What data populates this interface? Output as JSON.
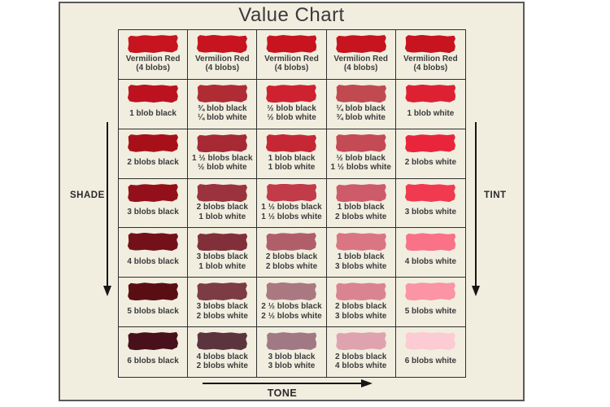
{
  "title": "Value Chart",
  "axes": {
    "shade_label": "SHADE",
    "tint_label": "TINT",
    "tone_label": "TONE"
  },
  "colors": {
    "page_bg": "#ffffff",
    "panel_bg": "#F1EEE0",
    "panel_border": "#5a5a5a",
    "grid_line": "#2e2e2e",
    "text": "#3b3b3b",
    "arrow": "#161616",
    "base_red": "#C7141F"
  },
  "chart_data": {
    "type": "table",
    "title": "Value Chart",
    "description_axes": {
      "left_arrow": "SHADE (down)",
      "right_arrow": "TINT (down)",
      "bottom_arrow": "TONE (right)"
    },
    "columns": 5,
    "rows": [
      {
        "cells": [
          {
            "label": [
              "Vermilion Red",
              "(4 blobs)"
            ],
            "color": "#C7141F"
          },
          {
            "label": [
              "Vermilion Red",
              "(4 blobs)"
            ],
            "color": "#C7141F"
          },
          {
            "label": [
              "Vermilion Red",
              "(4 blobs)"
            ],
            "color": "#C7141F"
          },
          {
            "label": [
              "Vermilion Red",
              "(4 blobs)"
            ],
            "color": "#C7141F"
          },
          {
            "label": [
              "Vermilion Red",
              "(4 blobs)"
            ],
            "color": "#C7141F"
          }
        ]
      },
      {
        "cells": [
          {
            "label": [
              "1 blob black"
            ],
            "color": "#BC1220"
          },
          {
            "label": [
              "¾ blob black",
              "¼ blob white"
            ],
            "color": "#B02C34"
          },
          {
            "label": [
              "½ blob black",
              "½ blob white"
            ],
            "color": "#CF2230"
          },
          {
            "label": [
              "¼ blob black",
              "¾ blob white"
            ],
            "color": "#C04A50"
          },
          {
            "label": [
              "1 blob white"
            ],
            "color": "#DD2133"
          }
        ]
      },
      {
        "cells": [
          {
            "label": [
              "2 blobs black"
            ],
            "color": "#A81019"
          },
          {
            "label": [
              "1 ½ blobs black",
              "½ blob white"
            ],
            "color": "#A62933"
          },
          {
            "label": [
              "1 blob black",
              "1 blob white"
            ],
            "color": "#C52834"
          },
          {
            "label": [
              "½ blob black",
              "1 ½ blobs white"
            ],
            "color": "#C44A55"
          },
          {
            "label": [
              "2 blobs white"
            ],
            "color": "#E9253B"
          }
        ]
      },
      {
        "cells": [
          {
            "label": [
              "3 blobs black"
            ],
            "color": "#93101A"
          },
          {
            "label": [
              "2 blobs black",
              "1 blob white"
            ],
            "color": "#9A333D"
          },
          {
            "label": [
              "1 ½ blobs black",
              "1 ½ blobs white"
            ],
            "color": "#C23B49"
          },
          {
            "label": [
              "1 blob black",
              "2 blobs white"
            ],
            "color": "#CE5B6A"
          },
          {
            "label": [
              "3 blobs white"
            ],
            "color": "#F13A50"
          }
        ]
      },
      {
        "cells": [
          {
            "label": [
              "4 blobs black"
            ],
            "color": "#73101A"
          },
          {
            "label": [
              "3 blobs black",
              "1 blob white"
            ],
            "color": "#81303A"
          },
          {
            "label": [
              "2 blobs black",
              "2 blobs white"
            ],
            "color": "#B05F6A"
          },
          {
            "label": [
              "1 blob black",
              "3 blobs white"
            ],
            "color": "#DA7584"
          },
          {
            "label": [
              "4 blobs white"
            ],
            "color": "#F97287"
          }
        ]
      },
      {
        "cells": [
          {
            "label": [
              "5 blobs black"
            ],
            "color": "#5A0E14"
          },
          {
            "label": [
              "3 blobs black",
              "2 blobs white"
            ],
            "color": "#7D3B44"
          },
          {
            "label": [
              "2 ½ blobs black",
              "2 ½ blobs white"
            ],
            "color": "#AA7881"
          },
          {
            "label": [
              "2 blobs black",
              "3 blobs white"
            ],
            "color": "#DB8491"
          },
          {
            "label": [
              "5 blobs white"
            ],
            "color": "#FB94A4"
          }
        ]
      },
      {
        "cells": [
          {
            "label": [
              "6 blobs black"
            ],
            "color": "#48101A"
          },
          {
            "label": [
              "4 blobs black",
              "2 blobs white"
            ],
            "color": "#5C343D"
          },
          {
            "label": [
              "3 blob black",
              "3 blob white"
            ],
            "color": "#A07984"
          },
          {
            "label": [
              "2 blobs black",
              "4 blobs white"
            ],
            "color": "#DFA3B0"
          },
          {
            "label": [
              "6 blobs white"
            ],
            "color": "#FCCBD4"
          }
        ]
      }
    ]
  }
}
